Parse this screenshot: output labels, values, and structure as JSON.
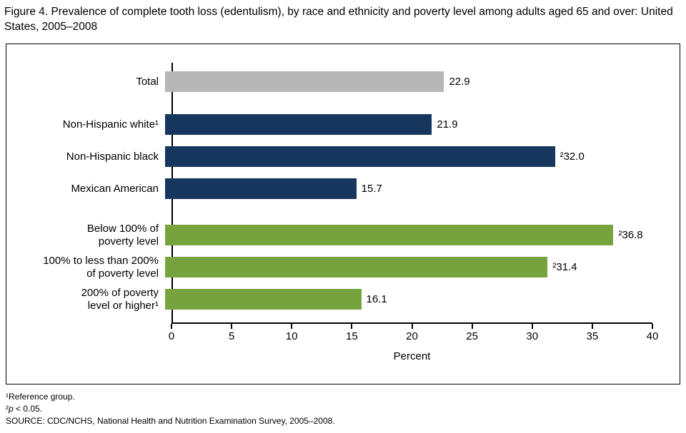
{
  "title": "Figure 4. Prevalence of complete tooth loss (edentulism), by race and ethnicity and poverty level among adults aged 65 and over: United States, 2005–2008",
  "chart_data": {
    "type": "bar",
    "orientation": "horizontal",
    "title": "Figure 4. Prevalence of complete tooth loss (edentulism), by race and ethnicity and poverty level among adults aged 65 and over: United States, 2005–2008",
    "xlabel": "Percent",
    "xlim": [
      0,
      40
    ],
    "x_ticks": [
      0,
      5,
      10,
      15,
      20,
      25,
      30,
      35,
      40
    ],
    "grid": false,
    "legend": "none",
    "bars": [
      {
        "label": "Total",
        "value": 22.9,
        "value_label": "22.9",
        "group": "total"
      },
      {
        "label": "Non-Hispanic white¹",
        "value": 21.9,
        "value_label": "21.9",
        "group": "race"
      },
      {
        "label": "Non-Hispanic black",
        "value": 32.0,
        "value_label": "²32.0",
        "group": "race"
      },
      {
        "label": "Mexican American",
        "value": 15.7,
        "value_label": "15.7",
        "group": "race"
      },
      {
        "label": "Below 100% of\npoverty level",
        "value": 36.8,
        "value_label": "²36.8",
        "group": "poverty"
      },
      {
        "label": "100% to less than 200%\nof poverty level",
        "value": 31.4,
        "value_label": "²31.4",
        "group": "poverty"
      },
      {
        "label": "200% of poverty\nlevel or higher¹",
        "value": 16.1,
        "value_label": "16.1",
        "group": "poverty"
      }
    ],
    "colors": {
      "total": "#b7b7b7",
      "race": "#17365d",
      "poverty": "#77a33e"
    }
  },
  "footnotes": {
    "line1": "¹Reference group.",
    "line2_sup": "²",
    "line2_var": "p",
    "line2_rest": " < 0.05.",
    "line3": "SOURCE: CDC/NCHS, National Health and Nutrition Examination Survey, 2005–2008."
  }
}
